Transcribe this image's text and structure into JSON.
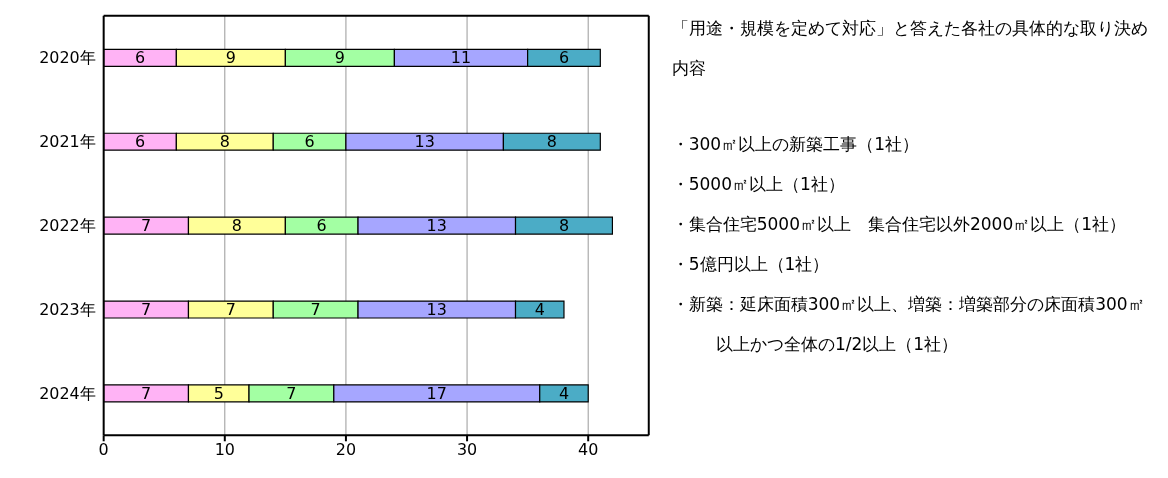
{
  "chart_data": {
    "type": "bar",
    "orientation": "horizontal",
    "stacked": true,
    "categories": [
      "2020年",
      "2021年",
      "2022年",
      "2023年",
      "2024年"
    ],
    "series": [
      {
        "color": "#ffb3f5",
        "values": [
          6,
          6,
          7,
          7,
          7
        ]
      },
      {
        "color": "#ffff99",
        "values": [
          9,
          8,
          8,
          7,
          5
        ]
      },
      {
        "color": "#a3ffa3",
        "values": [
          9,
          6,
          6,
          7,
          7
        ]
      },
      {
        "color": "#a6a6ff",
        "values": [
          11,
          13,
          13,
          13,
          17
        ]
      },
      {
        "color": "#4bacc6",
        "values": [
          6,
          8,
          8,
          4,
          4
        ]
      }
    ],
    "xlim": [
      0,
      45
    ],
    "xticks": [
      0,
      10,
      20,
      30,
      40
    ],
    "grid": "x",
    "data_labels": true,
    "annotations": [
      "「用途・規模を定めて対応」と答えた各社の具体的な取り決め内容",
      "・300㎡以上の新築工事（1社）",
      "・5000㎡以上（1社）",
      "・集合住宅5000㎡以上　集合住宅以外2000㎡以上（1社）",
      "・5億円以上（1社）",
      "・新築：延床面積300㎡以上、増築：増築部分の床面積300㎡以上かつ全体の1/2以上（1社）"
    ]
  }
}
